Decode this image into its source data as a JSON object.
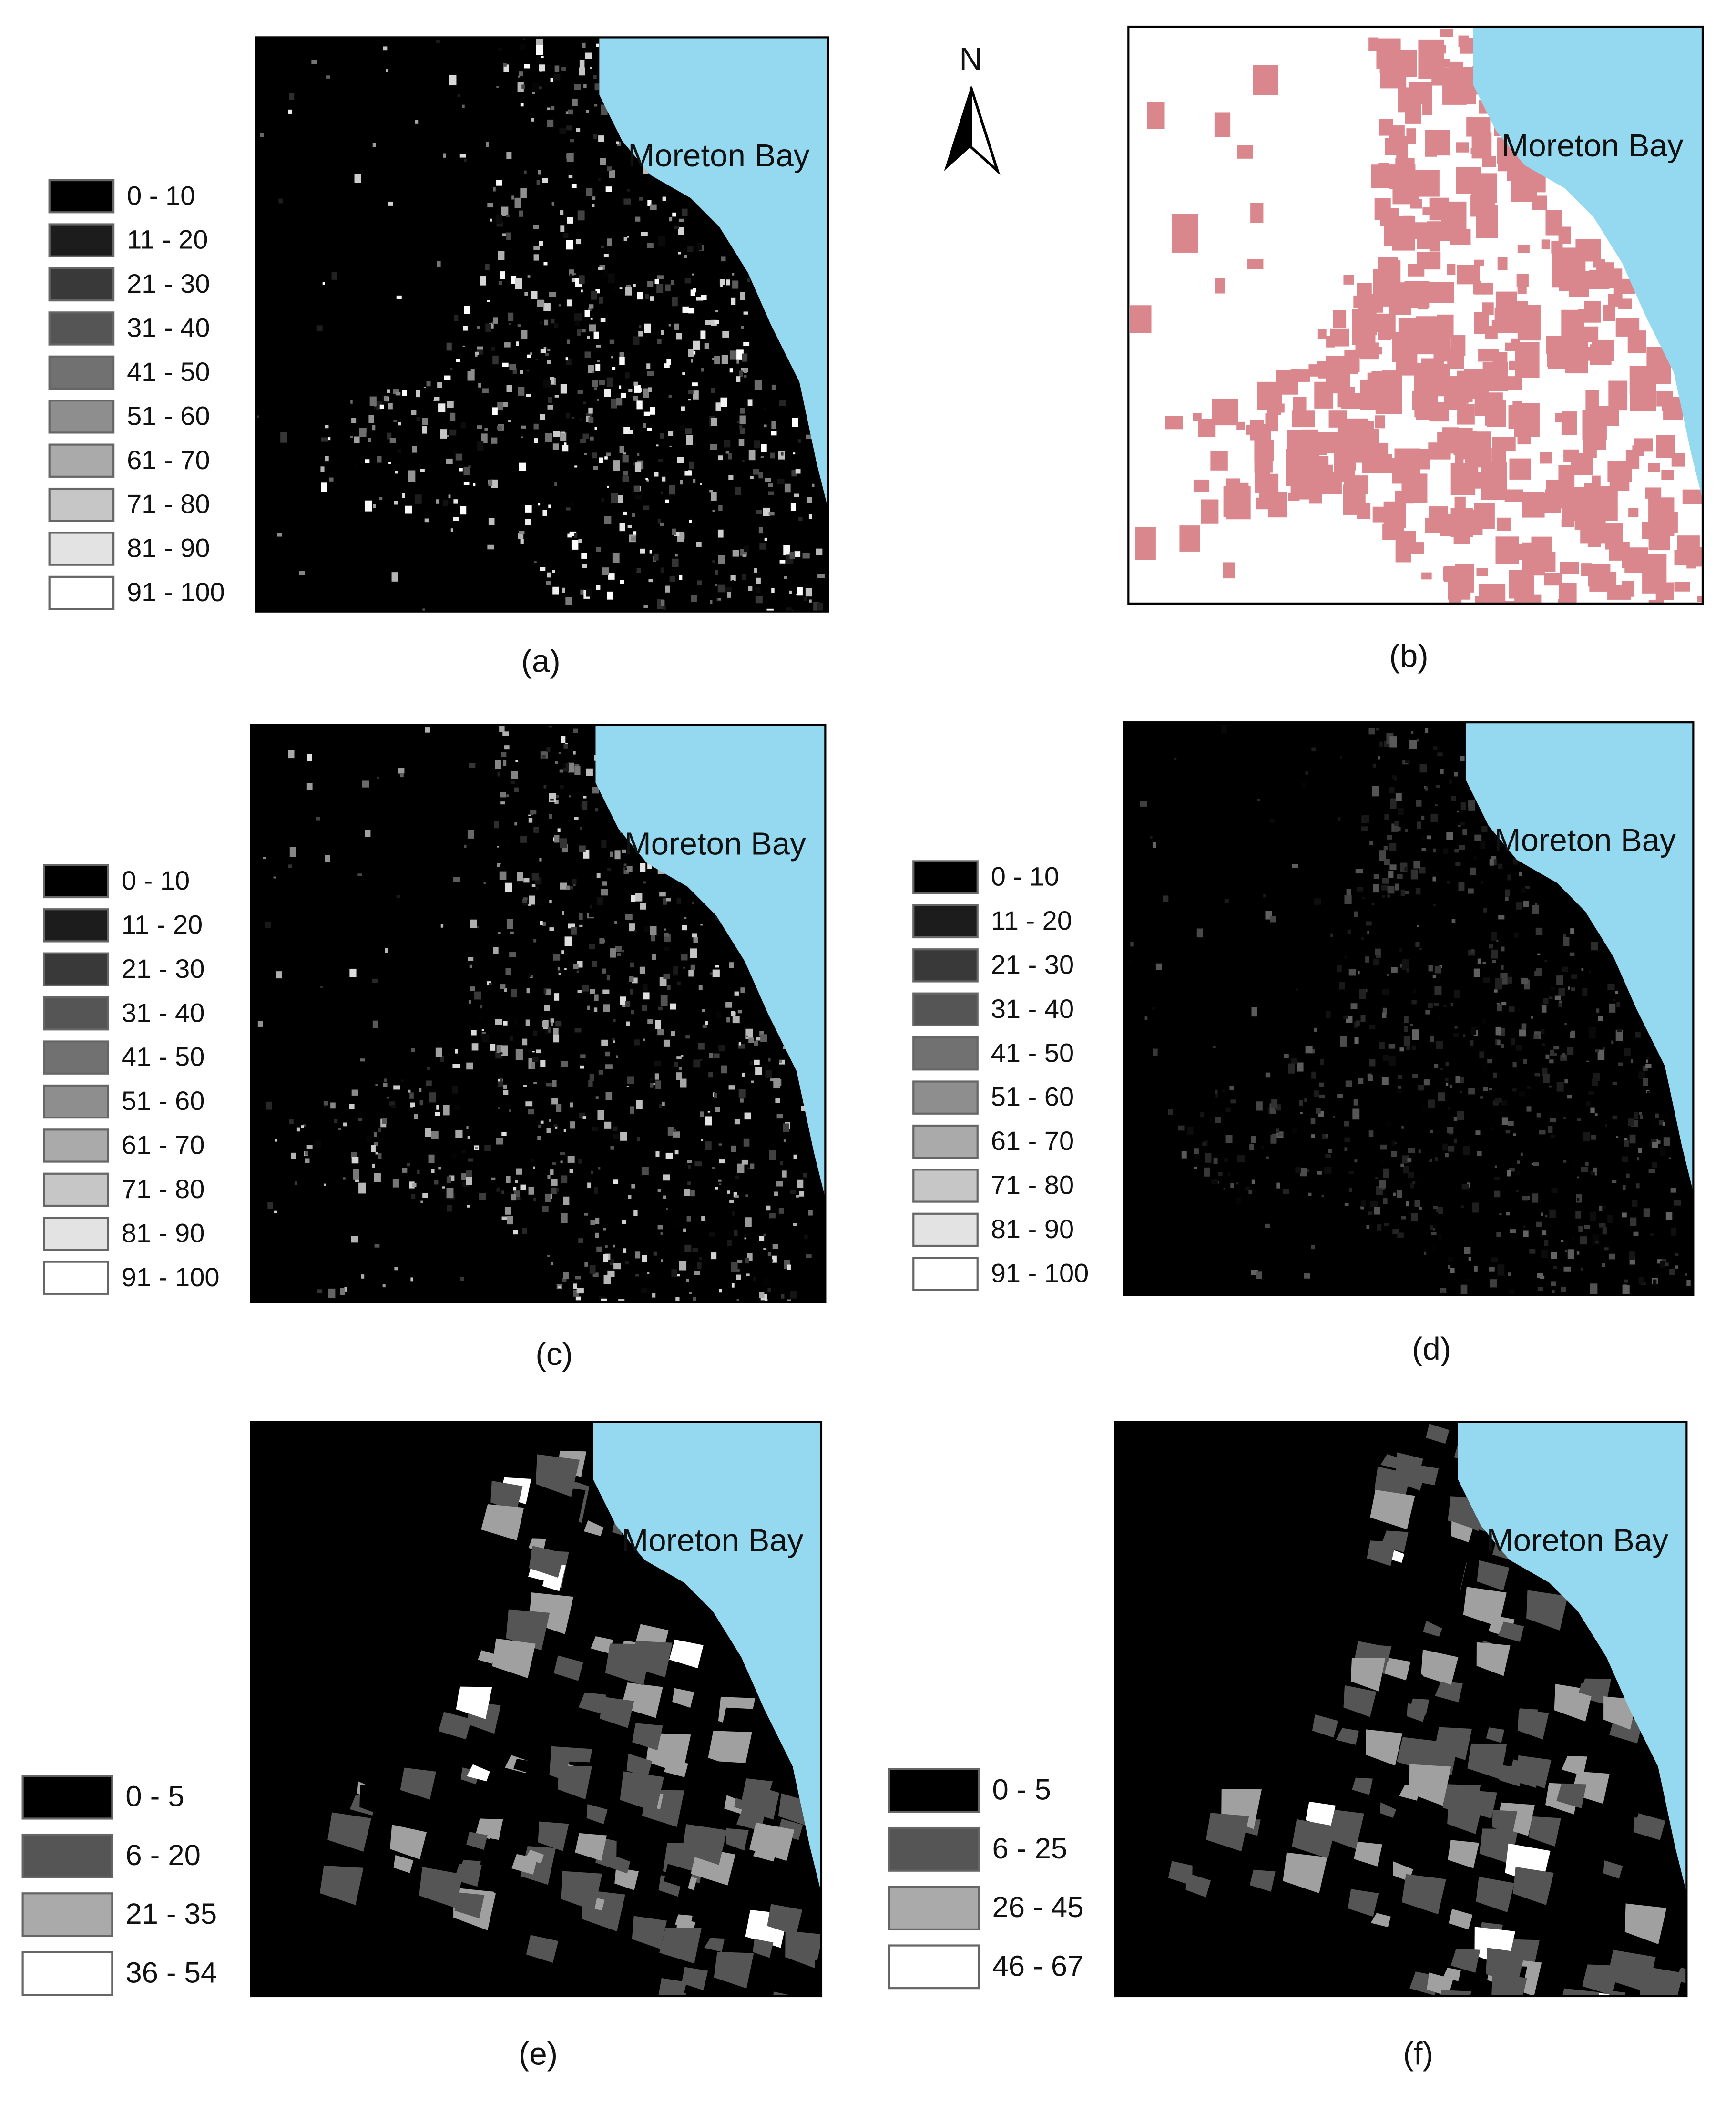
{
  "north_arrow": "N",
  "panels": [
    {
      "label": "(a)",
      "map_label": "Moreton Bay",
      "legend": [
        "0 - 10",
        "11 - 20",
        "21 - 30",
        "31 - 40",
        "41 - 50",
        "51 - 60",
        "61 - 70",
        "71 - 80",
        "81 - 90",
        "91 - 100"
      ]
    },
    {
      "label": "(b)",
      "map_label": "Moreton Bay"
    },
    {
      "label": "(c)",
      "map_label": "Moreton Bay",
      "legend": [
        "0 - 10",
        "11 - 20",
        "21 - 30",
        "31 - 40",
        "41 - 50",
        "51 - 60",
        "61 - 70",
        "71 - 80",
        "81 - 90",
        "91 - 100"
      ]
    },
    {
      "label": "(d)",
      "map_label": "Moreton Bay",
      "legend": [
        "0 - 10",
        "11 - 20",
        "21 - 30",
        "31 - 40",
        "41 - 50",
        "51 - 60",
        "61 - 70",
        "71 - 80",
        "81 - 90",
        "91 - 100"
      ]
    },
    {
      "label": "(e)",
      "map_label": "Moreton Bay",
      "legend": [
        "0 - 5",
        "6 - 20",
        "21 - 35",
        "36 - 54"
      ]
    },
    {
      "label": "(f)",
      "map_label": "Moreton Bay",
      "legend": [
        "0 - 5",
        "6 - 25",
        "26 - 45",
        "46 - 67"
      ]
    }
  ]
}
